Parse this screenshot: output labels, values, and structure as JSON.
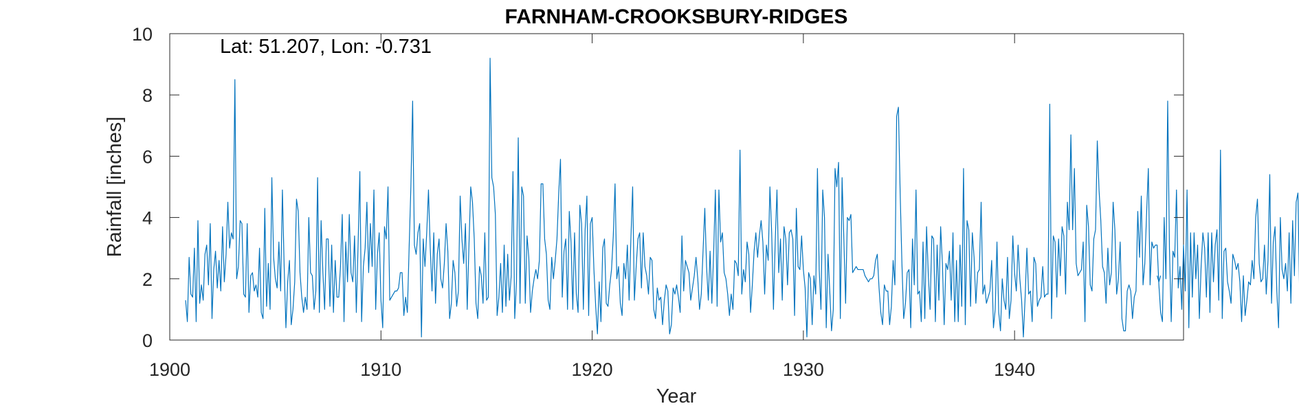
{
  "chart_data": {
    "type": "line",
    "title": "FARNHAM-CROOKSBURY-RIDGES",
    "xlabel": "Year",
    "ylabel": "Rainfall [inches]",
    "annotation": "Lat: 51.207, Lon: -0.731",
    "xlim": [
      1900,
      1948
    ],
    "ylim": [
      0,
      10
    ],
    "xticks": [
      1900,
      1910,
      1920,
      1930,
      1940
    ],
    "yticks": [
      0,
      2,
      4,
      6,
      8,
      10
    ],
    "grid": false,
    "legend": "none",
    "line_color": "#0072BD",
    "series": [
      {
        "x_start": 1900.75,
        "x_step": 0.083333,
        "values": [
          1.3,
          0.6,
          2.7,
          1.5,
          1.4,
          3.0,
          0.6,
          3.9,
          1.2,
          1.8,
          1.3,
          2.8,
          3.1,
          1.8,
          3.8,
          0.7,
          2.3,
          2.9,
          1.7,
          2.6,
          1.6,
          3.7,
          1.9,
          2.8,
          4.5,
          3.0,
          3.5,
          3.3,
          8.5,
          2.0,
          2.4,
          3.9,
          3.8,
          1.5,
          1.4,
          3.8,
          0.9,
          2.1,
          2.2,
          1.6,
          1.8,
          1.4,
          3.0,
          0.9,
          0.7,
          4.3,
          1.1,
          2.5,
          1.0,
          5.3,
          2.7,
          2.0,
          1.7,
          3.2,
          1.6,
          4.9,
          2.4,
          0.4,
          1.9,
          2.6,
          0.5,
          1.0,
          1.9,
          4.6,
          4.2,
          2.2,
          1.4,
          0.9,
          1.4,
          1.0,
          4.0,
          2.2,
          2.1,
          1.0,
          1.6,
          5.3,
          0.9,
          3.9,
          2.2,
          1.0,
          3.3,
          3.3,
          1.1,
          3.1,
          0.9,
          2.6,
          1.4,
          1.4,
          2.4,
          4.1,
          0.6,
          3.2,
          1.9,
          4.1,
          2.2,
          1.9,
          3.4,
          0.9,
          3.1,
          5.5,
          0.6,
          2.4,
          3.0,
          4.5,
          2.2,
          3.8,
          2.4,
          4.9,
          1.0,
          2.8,
          3.5,
          1.3,
          0.4,
          3.7,
          3.3,
          5.0,
          1.3,
          1.4,
          1.5,
          1.6,
          1.6,
          1.7,
          2.2,
          2.2,
          0.8,
          1.4,
          0.9,
          3.0,
          5.0,
          7.8,
          3.1,
          2.8,
          3.5,
          3.8,
          0.1,
          3.3,
          2.4,
          3.5,
          4.9,
          3.0,
          1.6,
          3.5,
          1.2,
          2.8,
          3.3,
          2.0,
          1.7,
          2.5,
          3.8,
          2.9,
          0.7,
          1.2,
          2.6,
          2.2,
          1.1,
          1.6,
          4.7,
          3.3,
          2.5,
          3.8,
          1.0,
          3.1,
          5.0,
          4.5,
          3.3,
          1.2,
          0.7,
          2.4,
          2.1,
          1.2,
          3.5,
          1.3,
          1.4,
          9.2,
          5.3,
          5.0,
          4.1,
          0.8,
          1.4,
          2.5,
          0.9,
          3.1,
          1.1,
          2.8,
          1.3,
          2.1,
          5.5,
          0.7,
          1.9,
          6.6,
          1.2,
          5.0,
          4.7,
          1.2,
          3.4,
          2.7,
          0.9,
          1.6,
          2.0,
          2.3,
          2.0,
          2.6,
          5.1,
          5.1,
          3.3,
          2.8,
          1.3,
          1.0,
          2.7,
          2.0,
          2.6,
          3.3,
          4.8,
          5.9,
          1.4,
          2.9,
          3.3,
          1.0,
          4.2,
          3.2,
          1.0,
          3.5,
          1.5,
          0.9,
          4.4,
          3.8,
          1.0,
          3.6,
          4.7,
          0.8,
          3.8,
          4.0,
          2.3,
          1.1,
          0.2,
          1.9,
          0.6,
          3.0,
          3.3,
          1.2,
          1.1,
          1.8,
          2.3,
          3.4,
          5.1,
          2.0,
          2.4,
          1.2,
          0.8,
          2.5,
          2.0,
          3.1,
          1.3,
          3.3,
          5.0,
          1.3,
          2.4,
          3.3,
          3.5,
          1.7,
          3.5,
          2.4,
          2.1,
          1.5,
          2.7,
          2.6,
          1.0,
          0.7,
          1.7,
          1.3,
          1.4,
          0.5,
          1.3,
          1.8,
          1.6,
          0.2,
          0.5,
          1.7,
          1.5,
          1.8,
          1.4,
          0.9,
          3.4,
          1.6,
          2.6,
          2.4,
          2.2,
          1.3,
          1.7,
          2.1,
          2.7,
          2.0,
          1.0,
          1.5,
          2.9,
          4.3,
          2.4,
          1.3,
          2.9,
          1.2,
          2.8,
          4.9,
          1.1,
          4.9,
          3.2,
          3.5,
          2.2,
          2.0,
          1.5,
          0.8,
          1.5,
          1.0,
          2.6,
          2.5,
          2.1,
          6.2,
          1.5,
          2.3,
          1.9,
          3.2,
          2.8,
          0.9,
          1.8,
          2.9,
          3.5,
          2.7,
          3.4,
          3.9,
          3.2,
          1.5,
          3.1,
          2.6,
          5.0,
          3.5,
          1.0,
          3.2,
          4.9,
          2.2,
          3.3,
          1.3,
          3.7,
          3.3,
          1.8,
          3.5,
          3.6,
          3.3,
          0.8,
          4.3,
          2.4,
          2.3,
          3.4,
          2.3,
          1.7,
          0.1,
          2.2,
          2.0,
          0.5,
          2.1,
          1.5,
          5.6,
          2.3,
          1.0,
          4.9,
          4.0,
          0.4,
          2.8,
          1.6,
          0.3,
          1.0,
          5.6,
          5.0,
          5.8,
          0.7,
          5.3,
          3.3,
          1.2,
          4.0,
          3.9,
          4.1,
          2.2,
          2.3,
          2.4,
          2.3,
          2.3,
          2.3,
          2.3,
          2.1,
          2.0,
          1.9,
          2.0,
          2.0,
          2.1,
          2.6,
          2.8,
          1.7,
          0.9,
          0.5,
          1.8,
          1.6,
          1.6,
          0.5,
          1.1,
          2.6,
          1.8,
          7.3,
          7.6,
          4.8,
          2.5,
          0.7,
          1.2,
          2.2,
          2.3,
          0.4,
          3.3,
          1.8,
          4.9,
          1.5,
          1.6,
          0.6,
          3.2,
          0.7,
          3.7,
          2.1,
          1.0,
          3.4,
          3.3,
          0.6,
          3.1,
          1.3,
          3.7,
          2.5,
          0.5,
          2.5,
          2.3,
          2.9,
          1.3,
          3.5,
          0.6,
          2.6,
          0.6,
          3.1,
          1.1,
          5.6,
          0.5,
          3.9,
          3.6,
          1.1,
          3.5,
          2.7,
          1.2,
          2.2,
          2.3,
          4.5,
          1.5,
          1.8,
          1.2,
          1.4,
          1.6,
          2.6,
          0.4,
          1.0,
          3.2,
          0.9,
          0.3,
          2.0,
          1.3,
          1.0,
          2.7,
          0.7,
          1.3,
          3.4,
          2.2,
          1.6,
          3.1,
          2.0,
          1.3,
          0.1,
          1.4,
          3.0,
          1.5,
          1.6,
          0.6,
          2.7,
          2.5,
          1.1,
          1.3,
          1.4,
          2.4,
          1.4,
          1.5,
          1.5,
          7.7,
          0.7,
          3.4,
          3.2,
          1.4,
          3.3,
          2.1,
          3.7,
          3.4,
          1.5,
          4.5,
          3.6,
          6.7,
          3.6,
          5.6,
          2.5,
          2.1,
          2.2,
          2.3,
          3.2,
          0.6,
          4.4,
          3.7,
          1.8,
          1.6,
          3.3,
          3.6,
          6.5,
          4.9,
          3.9,
          2.4,
          2.2,
          1.2,
          3.0,
          1.8,
          2.2,
          4.5,
          3.6,
          1.5,
          2.0,
          3.2,
          0.7,
          0.3,
          0.3,
          1.6,
          1.8,
          1.6,
          0.7,
          1.4,
          1.6,
          4.2,
          2.7,
          4.7,
          1.8,
          2.5,
          4.1,
          5.6,
          1.8,
          3.2,
          3.0,
          3.1,
          3.1,
          1.8,
          0.9,
          0.6,
          4.0,
          2.0,
          7.8,
          3.0,
          0.6,
          2.9,
          2.7,
          4.9,
          1.7,
          2.4,
          1.0,
          3.1,
          1.6,
          4.9,
          0.4,
          3.5,
          1.4,
          3.5,
          2.0,
          3.1,
          0.7,
          2.4,
          3.5,
          3.0,
          1.4,
          3.5,
          0.9,
          3.5,
          1.9,
          3.1,
          3.6,
          1.3,
          6.2,
          0.7,
          2.9,
          3.0,
          1.9,
          1.6,
          1.2,
          2.8,
          2.6,
          2.3,
          2.5,
          1.9,
          0.6,
          2.1,
          0.8,
          1.3,
          1.9,
          1.8,
          2.6,
          2.0,
          4.0,
          4.6,
          2.5,
          1.9,
          2.0,
          3.1,
          1.5,
          2.6,
          5.4,
          1.2,
          3.2,
          3.7,
          1.6,
          0.4,
          4.0,
          2.3,
          2.0,
          2.5,
          1.6,
          3.5,
          1.2,
          3.9,
          2.1,
          4.5,
          4.8,
          1.3,
          5.5,
          3.4
        ]
      },
      {
        "x_start": 1946.75,
        "x_step": 0.083333,
        "values": [
          2.1,
          1.9,
          2.1
        ]
      }
    ]
  }
}
